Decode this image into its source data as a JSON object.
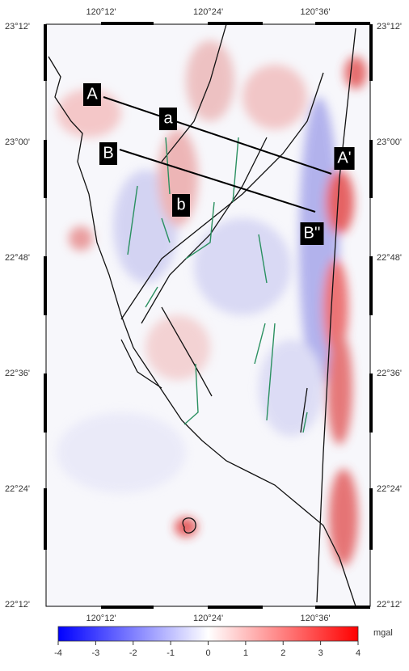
{
  "map": {
    "lon_labels": [
      "120°12'",
      "120°24'",
      "120°36'"
    ],
    "lat_labels": [
      "23°12'",
      "23°00'",
      "22°48'",
      "22°36'",
      "22°24'",
      "22°12'"
    ],
    "profile_labels": [
      "A",
      "a",
      "A'",
      "B",
      "b",
      "B''"
    ]
  },
  "colorbar": {
    "range": [
      -4,
      4
    ],
    "ticks": [
      -4,
      -3,
      -2,
      -1,
      0,
      1,
      2,
      3,
      4
    ],
    "unit": "mgal"
  }
}
